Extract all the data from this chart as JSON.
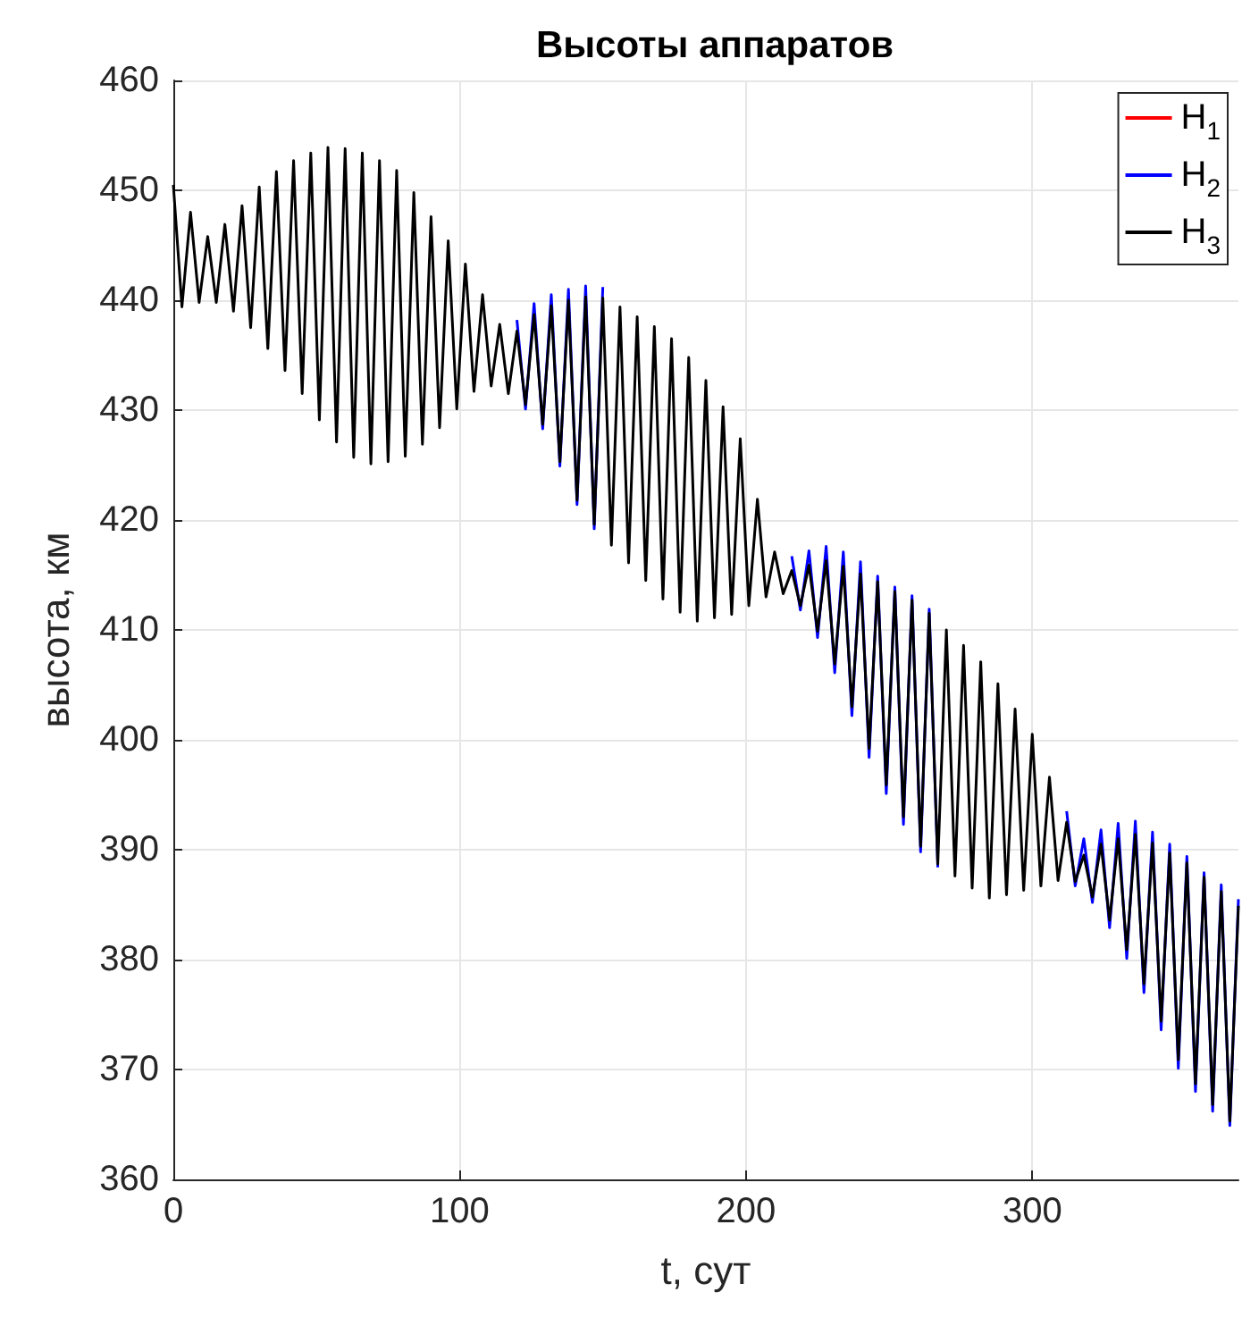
{
  "chart_data": {
    "type": "line",
    "title": "Высоты аппаратов",
    "xlabel": "t, сут",
    "ylabel": "высота, км",
    "x": [
      0,
      3,
      6,
      9,
      12,
      15,
      18,
      21,
      24,
      27,
      30,
      33,
      36,
      39,
      42,
      45,
      48,
      51,
      54,
      57,
      60,
      63,
      66,
      69,
      72,
      75,
      78,
      81,
      84,
      87,
      90,
      93,
      96,
      99,
      102,
      105,
      108,
      111,
      114,
      117,
      120,
      123,
      126,
      129,
      132,
      135,
      138,
      141,
      144,
      147,
      150,
      153,
      156,
      159,
      162,
      165,
      168,
      171,
      174,
      177,
      180,
      183,
      186,
      189,
      192,
      195,
      198,
      201,
      204,
      207,
      210,
      213,
      216,
      219,
      222,
      225,
      228,
      231,
      234,
      237,
      240,
      243,
      246,
      249,
      252,
      255,
      258,
      261,
      264,
      267,
      270,
      273,
      276,
      279,
      282,
      285,
      288,
      291,
      294,
      297,
      300,
      303,
      306,
      309,
      312,
      315,
      318,
      321,
      324,
      327,
      330,
      333,
      336,
      339,
      342,
      345,
      348,
      351,
      354,
      357,
      360,
      363,
      366,
      369,
      372
    ],
    "series": [
      {
        "name": "H$_{1}$",
        "color": "#ff0000",
        "values": [
          null,
          null,
          null,
          null,
          null,
          null,
          null,
          null,
          null,
          null,
          null,
          null,
          null,
          null,
          null,
          null,
          null,
          null,
          null,
          null,
          null,
          null,
          null,
          null,
          null,
          null,
          null,
          null,
          null,
          null,
          null,
          null,
          null,
          null,
          null,
          null,
          null,
          null,
          null,
          null,
          null,
          null,
          null,
          null,
          null,
          null,
          null,
          null,
          null,
          null,
          null,
          null,
          null,
          null,
          null,
          null,
          null,
          null,
          null,
          null,
          null,
          null,
          null,
          null,
          null,
          null,
          null,
          null,
          null,
          null,
          null,
          null,
          null,
          null,
          null,
          null,
          null,
          null,
          null,
          null,
          null,
          null,
          null,
          null,
          null,
          null,
          null,
          null,
          null,
          null,
          null,
          null,
          null,
          null,
          null,
          null,
          null,
          null,
          null,
          null,
          null,
          null,
          null,
          null,
          null,
          null,
          null,
          null,
          null,
          null,
          null,
          null,
          null,
          null,
          null,
          null,
          null,
          null,
          null,
          null,
          null,
          null,
          null,
          null,
          null
        ]
      },
      {
        "name": "H$_{2}$",
        "color": "#0000ff",
        "values": [
          null,
          null,
          null,
          null,
          null,
          null,
          null,
          null,
          null,
          null,
          null,
          null,
          null,
          null,
          null,
          null,
          null,
          null,
          null,
          null,
          null,
          null,
          null,
          null,
          null,
          null,
          null,
          null,
          null,
          null,
          null,
          null,
          null,
          null,
          null,
          null,
          null,
          null,
          null,
          null,
          438.2,
          430.1,
          439.7,
          428.3,
          440.5,
          424.9,
          441.0,
          421.4,
          441.3,
          419.2,
          441.2,
          null,
          null,
          null,
          null,
          null,
          null,
          null,
          null,
          null,
          null,
          null,
          null,
          null,
          null,
          null,
          null,
          null,
          null,
          null,
          null,
          null,
          416.7,
          411.8,
          417.2,
          409.3,
          417.6,
          406.1,
          417.1,
          402.2,
          416.2,
          398.4,
          414.9,
          395.1,
          413.9,
          392.3,
          413.1,
          389.8,
          411.9,
          388.4,
          null,
          null,
          null,
          null,
          null,
          null,
          null,
          null,
          null,
          null,
          null,
          null,
          null,
          null,
          393.5,
          386.7,
          391.0,
          385.2,
          391.8,
          382.9,
          392.4,
          380.1,
          392.6,
          377.0,
          391.6,
          373.6,
          390.5,
          370.1,
          389.4,
          368.0,
          387.9,
          366.2,
          386.8,
          364.9,
          385.5
        ]
      },
      {
        "name": "H$_{3}$",
        "color": "#000000",
        "values": [
          450.5,
          439.4,
          448.0,
          439.8,
          445.8,
          439.8,
          446.9,
          439.0,
          448.6,
          437.5,
          450.3,
          435.6,
          451.7,
          433.6,
          452.7,
          431.5,
          453.4,
          429.1,
          453.9,
          427.1,
          453.8,
          425.7,
          453.4,
          425.1,
          452.7,
          425.3,
          451.8,
          425.8,
          449.8,
          426.9,
          447.6,
          428.4,
          445.4,
          430.1,
          443.3,
          431.7,
          440.5,
          432.2,
          437.8,
          431.5,
          437.2,
          430.5,
          438.7,
          428.7,
          439.5,
          425.3,
          440.0,
          421.8,
          440.3,
          419.6,
          440.2,
          417.7,
          439.4,
          416.1,
          438.5,
          414.5,
          437.6,
          412.8,
          436.5,
          411.6,
          434.8,
          410.8,
          432.7,
          411.1,
          430.3,
          411.4,
          427.4,
          412.2,
          421.9,
          413.0,
          417.1,
          413.3,
          415.4,
          412.2,
          415.9,
          409.9,
          416.3,
          406.9,
          415.8,
          403.0,
          415.1,
          399.2,
          414.4,
          395.9,
          413.5,
          393.0,
          412.7,
          390.3,
          411.5,
          388.7,
          410.0,
          387.6,
          408.6,
          386.5,
          407.1,
          385.6,
          405.1,
          385.9,
          402.8,
          386.3,
          400.5,
          386.7,
          396.6,
          387.2,
          392.5,
          387.1,
          389.5,
          385.7,
          390.5,
          383.6,
          391.0,
          380.9,
          391.4,
          377.8,
          390.6,
          374.4,
          389.7,
          370.9,
          388.8,
          368.7,
          387.5,
          366.8,
          386.2,
          365.3,
          384.9
        ]
      }
    ],
    "xlim": [
      0,
      372
    ],
    "xticks": [
      0,
      100,
      200,
      300
    ],
    "ylim": [
      360,
      460
    ],
    "yticks": [
      360,
      370,
      380,
      390,
      400,
      410,
      420,
      430,
      440,
      450,
      460
    ],
    "grid": true,
    "legend": "top right",
    "marker": "none",
    "line_style": "solid"
  }
}
